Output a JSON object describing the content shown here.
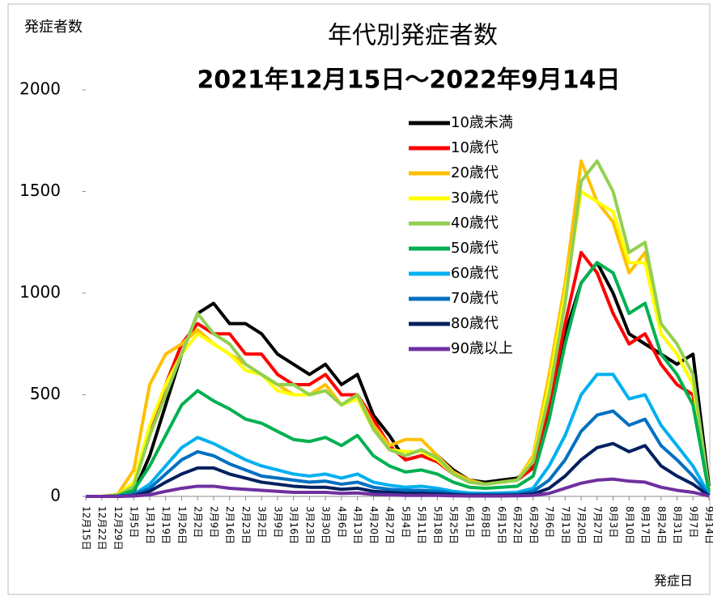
{
  "chart_data": {
    "type": "line",
    "title": "年代別発症者数",
    "subtitle": "2021年12月15日～2022年9月14日",
    "y_label": "発症者数",
    "x_label": "発症日",
    "categories": [
      "12月15日",
      "12月22日",
      "12月29日",
      "1月5日",
      "1月12日",
      "1月19日",
      "1月26日",
      "2月2日",
      "2月9日",
      "2月16日",
      "2月23日",
      "3月2日",
      "3月9日",
      "3月16日",
      "3月23日",
      "3月30日",
      "4月6日",
      "4月13日",
      "4月20日",
      "4月27日",
      "5月4日",
      "5月11日",
      "5月18日",
      "5月25日",
      "6月1日",
      "6月8日",
      "6月15日",
      "6月22日",
      "6月29日",
      "7月6日",
      "7月13日",
      "7月20日",
      "7月27日",
      "8月3日",
      "8月10日",
      "8月17日",
      "8月24日",
      "8月31日",
      "9月7日",
      "9月14日"
    ],
    "ylim": [
      0,
      2000
    ],
    "yticks": [
      0,
      500,
      1000,
      1500,
      2000
    ],
    "series": [
      {
        "name": "10歳未満",
        "color": "#000000",
        "values": [
          0,
          0,
          0,
          20,
          200,
          450,
          700,
          900,
          950,
          850,
          850,
          800,
          700,
          650,
          600,
          650,
          550,
          600,
          400,
          300,
          180,
          200,
          200,
          130,
          80,
          70,
          80,
          90,
          150,
          400,
          800,
          1050,
          1150,
          1000,
          800,
          750,
          700,
          650,
          700,
          50
        ]
      },
      {
        "name": "10歳代",
        "color": "#ff0000",
        "values": [
          0,
          0,
          5,
          60,
          300,
          550,
          750,
          850,
          800,
          800,
          700,
          700,
          600,
          550,
          550,
          600,
          500,
          500,
          380,
          250,
          180,
          200,
          170,
          110,
          70,
          60,
          70,
          80,
          140,
          450,
          850,
          1200,
          1100,
          900,
          750,
          800,
          650,
          550,
          500,
          30
        ]
      },
      {
        "name": "20歳代",
        "color": "#ffc000",
        "values": [
          0,
          0,
          10,
          130,
          550,
          700,
          750,
          820,
          750,
          700,
          650,
          600,
          550,
          500,
          500,
          550,
          450,
          500,
          350,
          250,
          280,
          280,
          200,
          120,
          80,
          60,
          70,
          80,
          200,
          600,
          1050,
          1650,
          1450,
          1350,
          1100,
          1200,
          800,
          700,
          550,
          30
        ]
      },
      {
        "name": "30歳代",
        "color": "#ffff00",
        "values": [
          0,
          0,
          5,
          70,
          350,
          550,
          700,
          800,
          750,
          700,
          620,
          600,
          520,
          500,
          500,
          520,
          450,
          480,
          330,
          230,
          220,
          220,
          180,
          110,
          70,
          60,
          70,
          80,
          180,
          550,
          1000,
          1500,
          1450,
          1400,
          1150,
          1150,
          800,
          700,
          550,
          30
        ]
      },
      {
        "name": "40歳代",
        "color": "#92d050",
        "values": [
          0,
          0,
          5,
          50,
          300,
          500,
          700,
          900,
          800,
          750,
          650,
          600,
          550,
          550,
          500,
          520,
          450,
          500,
          330,
          230,
          200,
          230,
          190,
          110,
          70,
          60,
          70,
          80,
          170,
          500,
          950,
          1550,
          1650,
          1500,
          1200,
          1250,
          850,
          750,
          600,
          30
        ]
      },
      {
        "name": "50歳代",
        "color": "#00b050",
        "values": [
          0,
          0,
          3,
          30,
          150,
          300,
          450,
          520,
          470,
          430,
          380,
          360,
          320,
          280,
          270,
          290,
          250,
          300,
          200,
          150,
          120,
          130,
          110,
          70,
          45,
          40,
          45,
          50,
          100,
          380,
          750,
          1050,
          1150,
          1100,
          900,
          950,
          700,
          600,
          450,
          20
        ]
      },
      {
        "name": "60歳代",
        "color": "#00b0f0",
        "values": [
          0,
          0,
          1,
          10,
          60,
          150,
          240,
          290,
          260,
          220,
          180,
          150,
          130,
          110,
          100,
          110,
          90,
          110,
          70,
          55,
          45,
          50,
          40,
          25,
          17,
          15,
          17,
          20,
          40,
          150,
          300,
          500,
          600,
          600,
          480,
          500,
          350,
          250,
          150,
          10
        ]
      },
      {
        "name": "70歳代",
        "color": "#0070c0",
        "values": [
          0,
          0,
          1,
          8,
          40,
          110,
          180,
          220,
          200,
          160,
          130,
          100,
          90,
          80,
          70,
          75,
          60,
          70,
          45,
          35,
          30,
          30,
          25,
          15,
          10,
          10,
          10,
          12,
          25,
          80,
          180,
          320,
          400,
          420,
          350,
          380,
          250,
          180,
          100,
          5
        ]
      },
      {
        "name": "80歳代",
        "color": "#002060",
        "values": [
          0,
          0,
          0,
          4,
          25,
          70,
          110,
          140,
          140,
          110,
          90,
          70,
          60,
          50,
          45,
          45,
          35,
          40,
          25,
          20,
          15,
          15,
          12,
          8,
          5,
          5,
          5,
          6,
          12,
          40,
          100,
          180,
          240,
          260,
          220,
          250,
          150,
          100,
          60,
          3
        ]
      },
      {
        "name": "90歳以上",
        "color": "#7030a0",
        "values": [
          0,
          0,
          0,
          2,
          8,
          25,
          40,
          50,
          50,
          40,
          35,
          30,
          25,
          20,
          20,
          20,
          15,
          17,
          10,
          8,
          5,
          5,
          5,
          3,
          2,
          2,
          2,
          3,
          5,
          15,
          40,
          65,
          80,
          85,
          75,
          70,
          45,
          30,
          20,
          2
        ]
      }
    ]
  }
}
